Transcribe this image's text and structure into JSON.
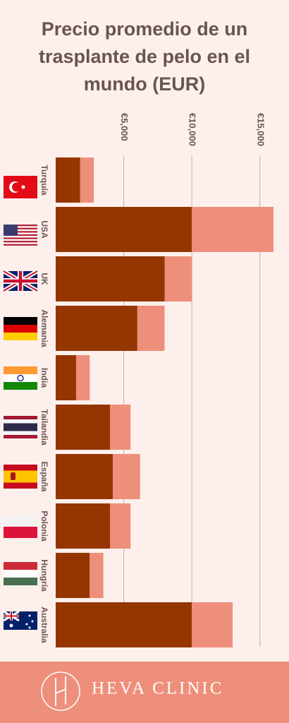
{
  "chart_data": {
    "type": "stacked_bar_horizontal",
    "title": "Precio promedio de un trasplante de pelo en el mundo (EUR)",
    "categories": [
      "Turquía",
      "USA",
      "UK",
      "Alemania",
      "India",
      "Tailandia",
      "España",
      "Polonia",
      "Hungría",
      "Australia"
    ],
    "series": [
      {
        "color": "#953600",
        "values": [
          1800,
          10000,
          8000,
          6000,
          1500,
          4000,
          4200,
          4000,
          2500,
          10000
        ]
      },
      {
        "color": "#ee8f7b",
        "values": [
          1000,
          6000,
          2000,
          2000,
          1000,
          1500,
          2000,
          1500,
          1000,
          3000
        ]
      }
    ],
    "xlim": [
      0,
      16000
    ],
    "xticks": [
      {
        "value": 5000,
        "label": "€5,000"
      },
      {
        "value": 10000,
        "label": "€10,000"
      },
      {
        "value": 15000,
        "label": "€15,000"
      }
    ],
    "grid": true
  },
  "brand": "HEVA CLINIC"
}
